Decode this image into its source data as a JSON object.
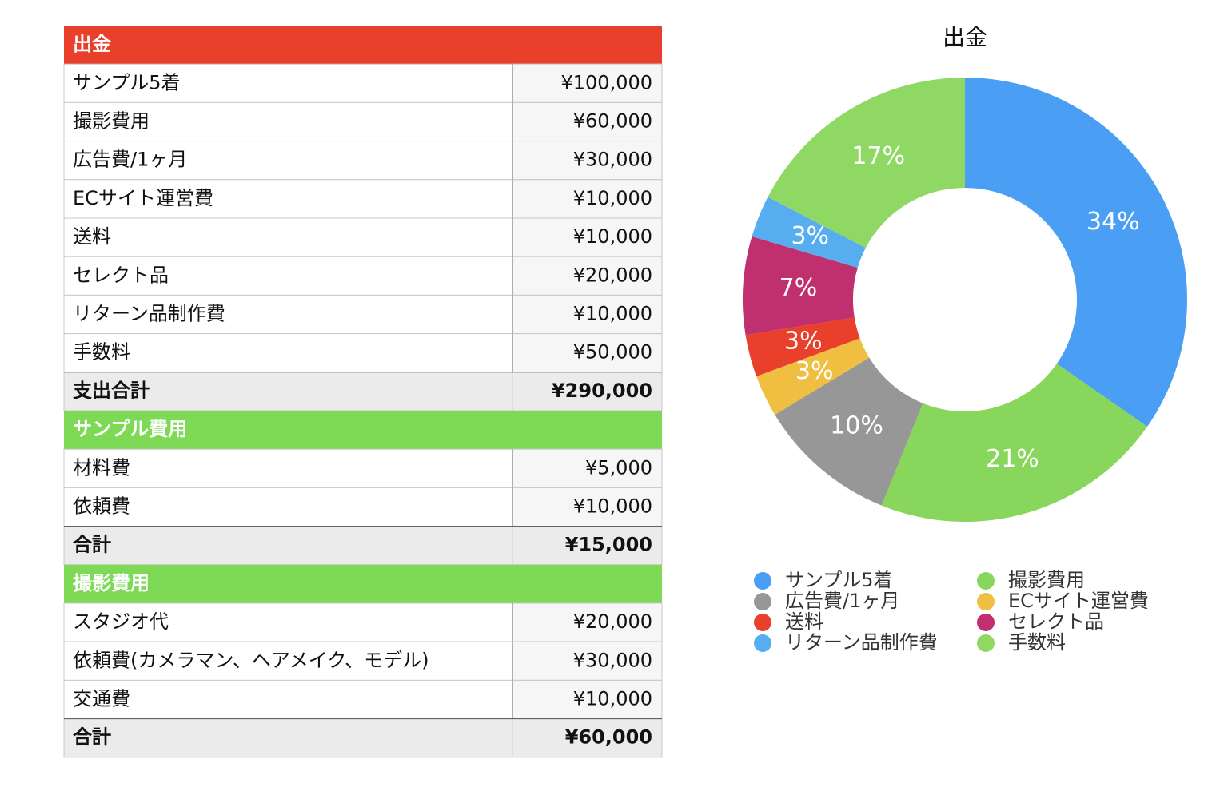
{
  "table": {
    "sections": [
      {
        "title": "出金",
        "color": "#e8402a",
        "rows": [
          [
            "サンプル5着",
            "¥100,000"
          ],
          [
            "撮影費用",
            "¥60,000"
          ],
          [
            "広告費/1ヶ月",
            "¥30,000"
          ],
          [
            "ECサイト運営費",
            "¥10,000"
          ],
          [
            "送料",
            "¥10,000"
          ],
          [
            "セレクト品",
            "¥20,000"
          ],
          [
            "リターン品制作費",
            "¥10,000"
          ],
          [
            "手数料",
            "¥50,000"
          ]
        ],
        "total": [
          "支出合計",
          "¥290,000"
        ]
      },
      {
        "title": "サンプル費用",
        "color": "#7ed957",
        "rows": [
          [
            "材料費",
            "¥5,000"
          ],
          [
            "依頼費",
            "¥10,000"
          ]
        ],
        "total": [
          "合計",
          "¥15,000"
        ]
      },
      {
        "title": "撮影費用",
        "color": "#7ed957",
        "rows": [
          [
            "スタジオ代",
            "¥20,000"
          ],
          [
            "依頼費(カメラマン、ヘアメイク、モデル)",
            "¥30,000"
          ],
          [
            "交通費",
            "¥10,000"
          ]
        ],
        "total": [
          "合計",
          "¥60,000"
        ]
      }
    ]
  },
  "chart_data": {
    "type": "donut",
    "title": "出金",
    "categories": [
      "サンプル5着",
      "撮影費用",
      "広告費/1ヶ月",
      "ECサイト運営費",
      "送料",
      "セレクト品",
      "リターン品制作費",
      "手数料"
    ],
    "values": [
      34,
      21,
      10,
      3,
      3,
      7,
      3,
      17
    ],
    "value_labels": [
      "34%",
      "21%",
      "10%",
      "3%",
      "3%",
      "7%",
      "3%",
      "17%"
    ],
    "colors": [
      "#4a9ff5",
      "#88d65c",
      "#979797",
      "#f0be40",
      "#e8402a",
      "#c0306e",
      "#56aef0",
      "#8ed863"
    ]
  }
}
